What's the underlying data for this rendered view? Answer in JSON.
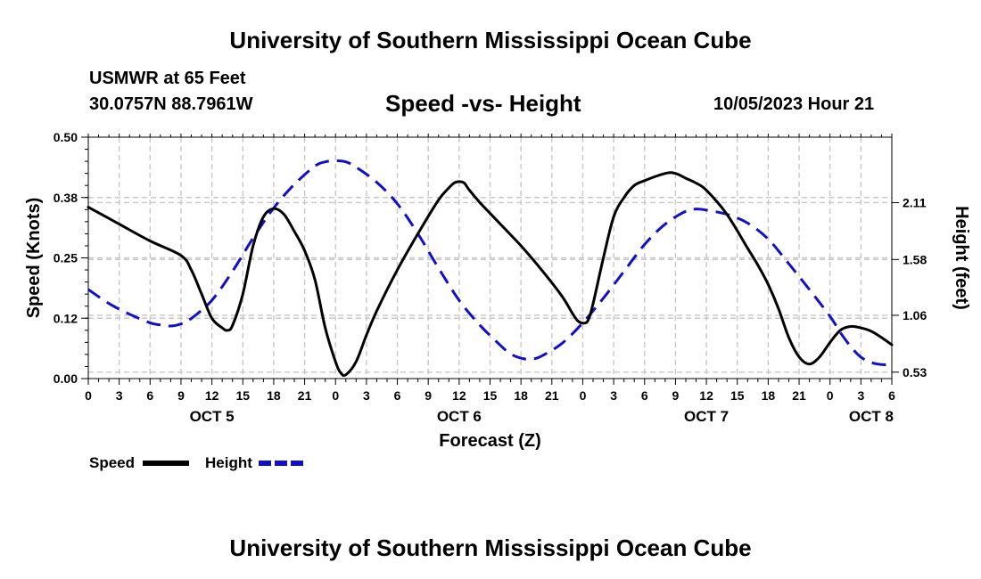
{
  "header": {
    "title": "University of Southern Mississippi Ocean Cube",
    "station": "USMWR at 65 Feet",
    "coordinates": "30.0757N  88.7961W",
    "subtitle": "Speed -vs- Height",
    "datetime": "10/05/2023 Hour 21"
  },
  "footer": {
    "title": "University of Southern Mississippi Ocean Cube"
  },
  "chart_data": {
    "type": "line",
    "title": "Speed -vs- Height",
    "xlabel": "Forecast (Z)",
    "ylabel": "Speed (Knots)",
    "y2label": "Height (feet)",
    "x_unit": "hours since OCT 5 00Z",
    "xlim": [
      0,
      78
    ],
    "ylim": [
      0,
      0.5
    ],
    "y2lim": [
      0.47,
      2.72
    ],
    "grid": true,
    "x_ticks": [
      0,
      3,
      6,
      9,
      12,
      15,
      18,
      21,
      24,
      27,
      30,
      33,
      36,
      39,
      42,
      45,
      48,
      51,
      54,
      57,
      60,
      63,
      66,
      69,
      72,
      75,
      78
    ],
    "x_tick_labels": [
      "0",
      "3",
      "6",
      "9",
      "12",
      "15",
      "18",
      "21",
      "0",
      "3",
      "6",
      "9",
      "12",
      "15",
      "18",
      "21",
      "0",
      "3",
      "6",
      "9",
      "12",
      "15",
      "18",
      "21",
      "0",
      "3",
      "6"
    ],
    "y_ticks": [
      0,
      0.125,
      0.25,
      0.375,
      0.5
    ],
    "y_tick_labels": [
      "0.00",
      "0.12",
      "0.25",
      "0.38",
      "0.50"
    ],
    "y2_ticks": [
      0.53,
      1.06,
      1.58,
      2.11
    ],
    "y2_tick_labels": [
      "0.53",
      "1.06",
      "1.58",
      "2.11"
    ],
    "day_labels": [
      {
        "x": 12,
        "label": "OCT 5"
      },
      {
        "x": 36,
        "label": "OCT 6"
      },
      {
        "x": 60,
        "label": "OCT 7"
      },
      {
        "x": 76,
        "label": "OCT 8"
      }
    ],
    "legend": [
      {
        "name": "Speed",
        "color": "#000000",
        "dash": false
      },
      {
        "name": "Height",
        "color": "#1010cc",
        "dash": true
      }
    ],
    "series": [
      {
        "name": "Speed",
        "axis": "left",
        "color": "#000000",
        "x": [
          0,
          3,
          6,
          9,
          10,
          11,
          12,
          13,
          13.5,
          14,
          15,
          16,
          17,
          18,
          19,
          20,
          21,
          22,
          23,
          24,
          24.5,
          25,
          26,
          27,
          28,
          30,
          32,
          34,
          35,
          35.5,
          36,
          36.5,
          37,
          38,
          40,
          42,
          44,
          46,
          47,
          47.5,
          48,
          48.5,
          49,
          50,
          51,
          52,
          53,
          54,
          56,
          57,
          58,
          59,
          60,
          62,
          64,
          65,
          66,
          67,
          68,
          69,
          70,
          71,
          72,
          73,
          74,
          75,
          76,
          77,
          78
        ],
        "values": [
          0.355,
          0.32,
          0.285,
          0.255,
          0.225,
          0.175,
          0.125,
          0.105,
          0.1,
          0.11,
          0.175,
          0.275,
          0.335,
          0.352,
          0.34,
          0.305,
          0.265,
          0.205,
          0.105,
          0.035,
          0.012,
          0.008,
          0.035,
          0.09,
          0.14,
          0.225,
          0.3,
          0.37,
          0.395,
          0.405,
          0.408,
          0.405,
          0.39,
          0.365,
          0.32,
          0.275,
          0.225,
          0.17,
          0.135,
          0.12,
          0.115,
          0.12,
          0.155,
          0.25,
          0.335,
          0.375,
          0.4,
          0.41,
          0.425,
          0.425,
          0.415,
          0.405,
          0.39,
          0.34,
          0.27,
          0.235,
          0.195,
          0.145,
          0.085,
          0.045,
          0.03,
          0.045,
          0.075,
          0.1,
          0.108,
          0.105,
          0.098,
          0.085,
          0.07
        ]
      },
      {
        "name": "Height",
        "axis": "right",
        "color": "#1010cc",
        "x": [
          0,
          2,
          4,
          6,
          7,
          8,
          9,
          10,
          12,
          14,
          16,
          18,
          20,
          22,
          23,
          24,
          25,
          26,
          28,
          30,
          32,
          34,
          36,
          38,
          40,
          41,
          42,
          43,
          44,
          46,
          48,
          50,
          52,
          54,
          56,
          58,
          59,
          60,
          62,
          64,
          66,
          68,
          70,
          72,
          73,
          74,
          75,
          76,
          77,
          78
        ],
        "values": [
          1.3,
          1.17,
          1.07,
          0.99,
          0.97,
          0.96,
          0.98,
          1.03,
          1.2,
          1.47,
          1.78,
          2.06,
          2.28,
          2.45,
          2.49,
          2.5,
          2.49,
          2.44,
          2.3,
          2.1,
          1.82,
          1.5,
          1.2,
          0.97,
          0.78,
          0.7,
          0.66,
          0.65,
          0.68,
          0.8,
          0.99,
          1.22,
          1.47,
          1.72,
          1.91,
          2.03,
          2.05,
          2.04,
          2.0,
          1.92,
          1.77,
          1.54,
          1.3,
          1.05,
          0.9,
          0.77,
          0.67,
          0.62,
          0.6,
          0.6
        ]
      }
    ]
  }
}
